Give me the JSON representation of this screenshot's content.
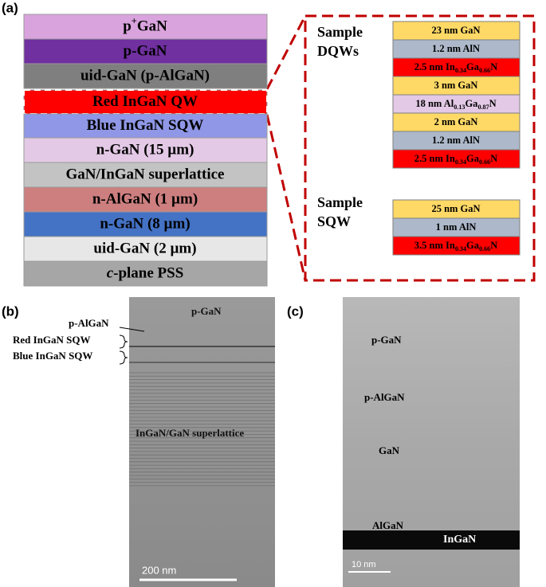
{
  "panel_a": {
    "label": "(a)",
    "stack": [
      {
        "label": [
          "p",
          {
            "sup": "+"
          },
          "GaN"
        ]
      },
      {
        "label": [
          "p-GaN"
        ]
      },
      {
        "label": [
          "uid-GaN (p-AlGaN)"
        ]
      },
      {
        "label": [
          "Red InGaN QW"
        ]
      },
      {
        "label": [
          "Blue InGaN SQW"
        ]
      },
      {
        "label": [
          "n-GaN (15 µm)"
        ]
      },
      {
        "label": [
          "GaN/InGaN superlattice"
        ]
      },
      {
        "label": [
          "n-AlGaN (1 µm)"
        ]
      },
      {
        "label": [
          "n-GaN (8 µm)"
        ]
      },
      {
        "label": [
          "uid-GaN (2 µm)"
        ]
      },
      {
        "label": [
          {
            "italic": "c"
          },
          "-plane PSS"
        ]
      }
    ],
    "samples": [
      {
        "name": [
          "Sample",
          "DQWs"
        ],
        "layers": [
          [
            "23 nm GaN"
          ],
          [
            "1.2 nm AlN"
          ],
          [
            "2.5 nm In",
            {
              "sub": "0.34"
            },
            "Ga",
            {
              "sub": "0.66"
            },
            "N"
          ],
          [
            "3 nm GaN"
          ],
          [
            "18 nm Al",
            {
              "sub": "0.13"
            },
            "Ga",
            {
              "sub": "0.87"
            },
            "N"
          ],
          [
            "2 nm GaN"
          ],
          [
            "1.2 nm AlN"
          ],
          [
            "2.5 nm In",
            {
              "sub": "0.34"
            },
            "Ga",
            {
              "sub": "0.66"
            },
            "N"
          ]
        ]
      },
      {
        "name": [
          "Sample",
          "SQW"
        ],
        "layers": [
          [
            "25 nm GaN"
          ],
          [
            "1 nm AlN"
          ],
          [
            "3.5 nm In",
            {
              "sub": "0.34"
            },
            "Ga",
            {
              "sub": "0.66"
            },
            "N"
          ]
        ]
      }
    ]
  },
  "panel_b": {
    "label": "(b)",
    "p_gan": "p-GaN",
    "p_algan": "p-AlGaN",
    "red_sqw": "Red InGaN SQW",
    "blue_sqw": "Blue InGaN SQW",
    "superlattice": "InGaN/GaN superlattice",
    "scale_bar": "200 nm"
  },
  "panel_c": {
    "label": "(c)",
    "p_gan": "p-GaN",
    "p_algan": "p-AlGaN",
    "gan": "GaN",
    "algan": "AlGaN",
    "ingan": "InGaN",
    "scale_bar": "10 nm"
  }
}
